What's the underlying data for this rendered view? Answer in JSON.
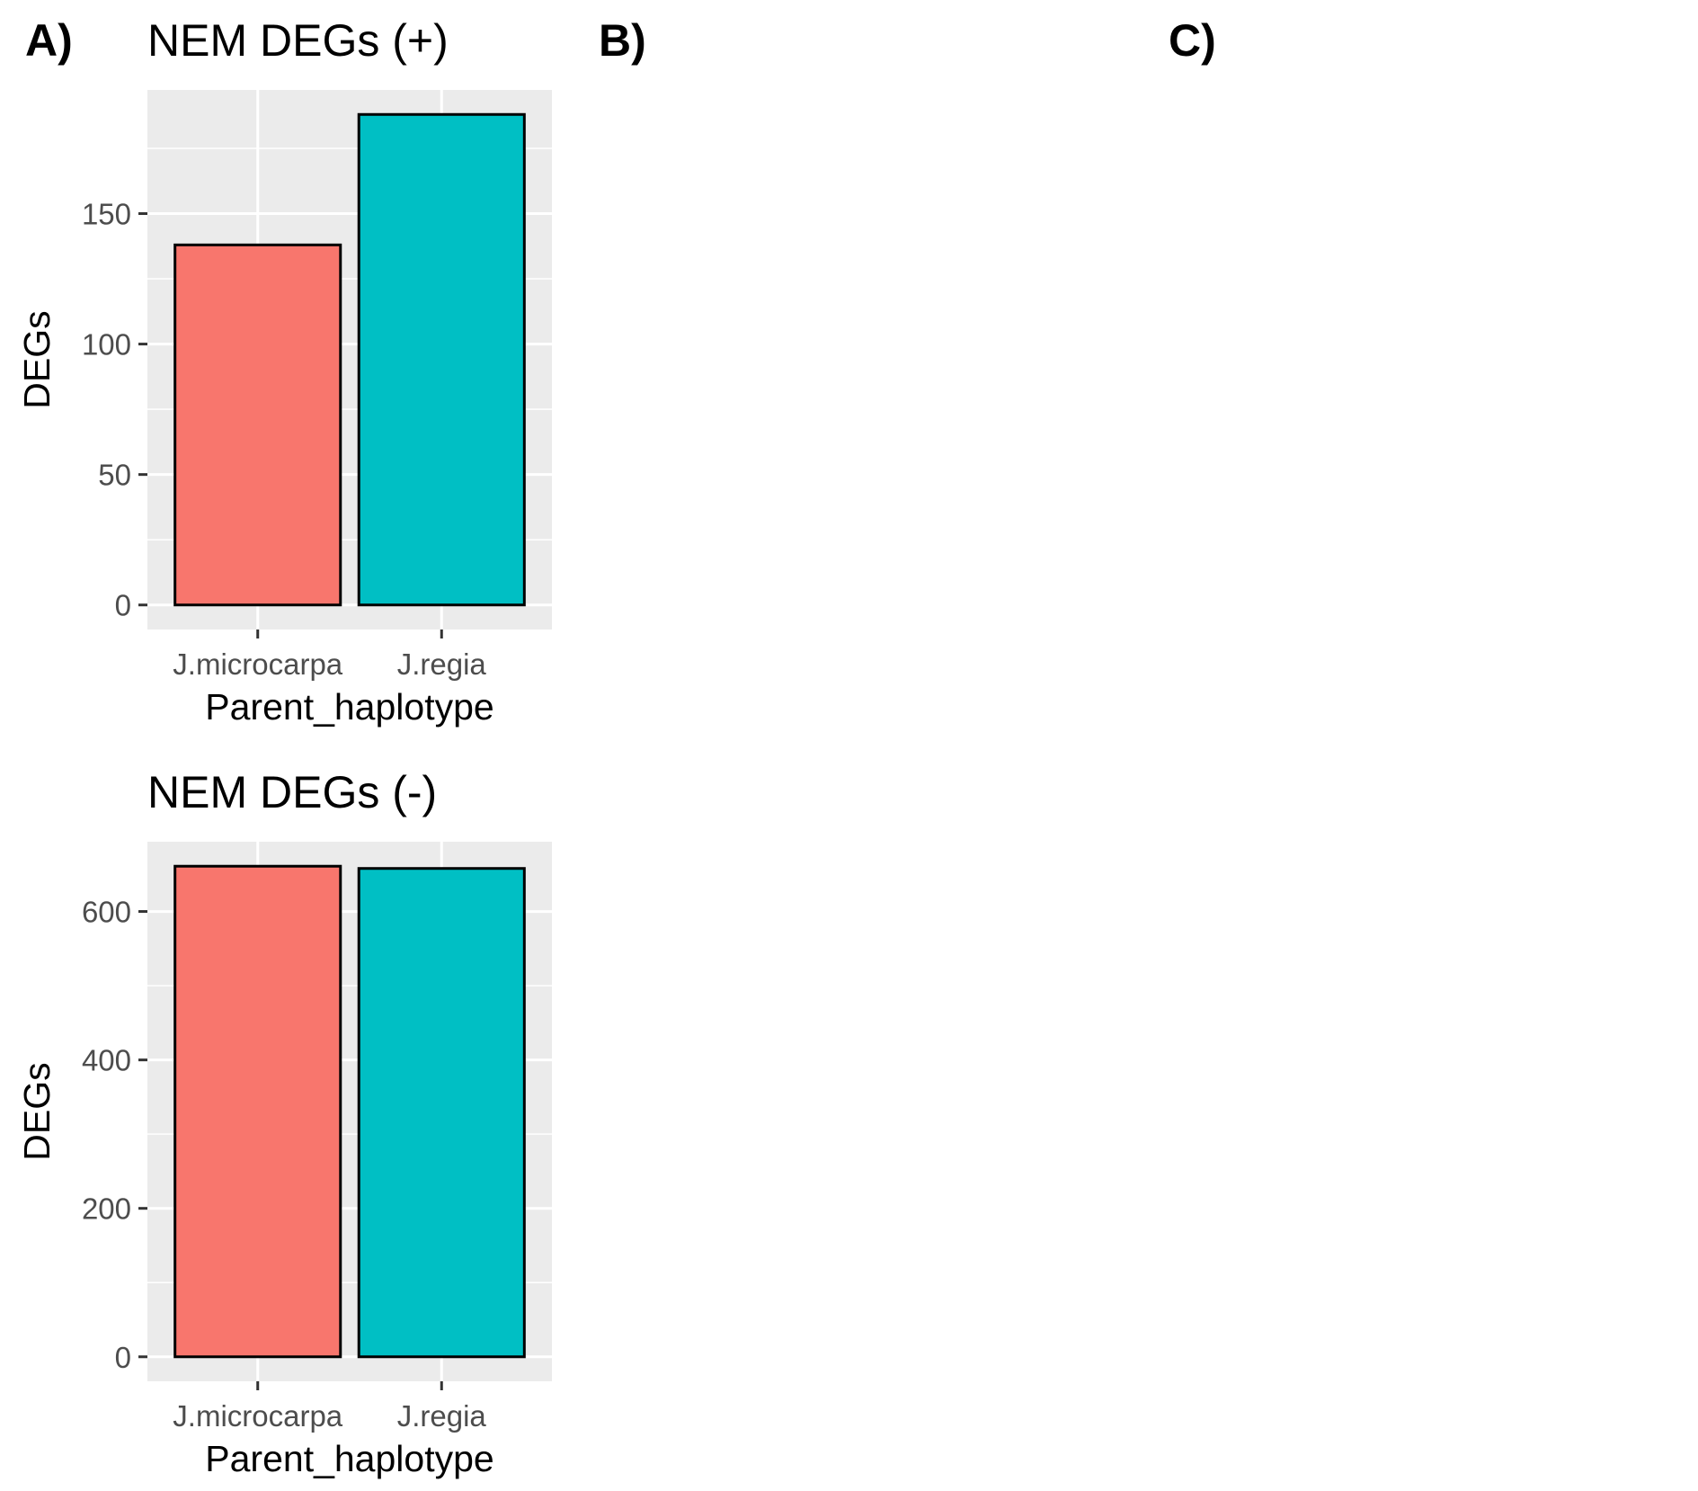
{
  "panel_labels": [
    "A)",
    "B)",
    "C)"
  ],
  "chart_data": [
    {
      "type": "bar",
      "title": "NEM DEGs (+)",
      "xlabel": "Parent_haplotype",
      "ylabel": "DEGs",
      "categories": [
        "J.microcarpa",
        "J.regia"
      ],
      "values": [
        138,
        188
      ],
      "ylim": [
        -9.4,
        197.4
      ],
      "yticks": [
        0,
        50,
        100,
        150
      ],
      "colors": [
        "#F8766D",
        "#00BFC4"
      ],
      "grid": true
    },
    {
      "type": "bar",
      "title": "NEM DEGs (-)",
      "xlabel": "Parent_haplotype",
      "ylabel": "DEGs",
      "categories": [
        "J.microcarpa",
        "J.regia"
      ],
      "values": [
        661,
        658
      ],
      "ylim": [
        -33,
        694
      ],
      "yticks": [
        0,
        200,
        400,
        600
      ],
      "colors": [
        "#F8766D",
        "#00BFC4"
      ],
      "grid": true
    }
  ]
}
